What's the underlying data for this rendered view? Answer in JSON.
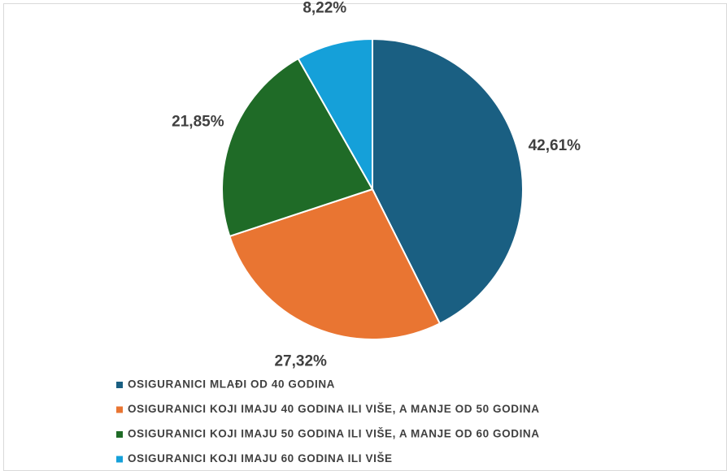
{
  "chart_data": {
    "type": "pie",
    "categories": [
      "OSIGURANICI MLAĐI OD 40 GODINA",
      "OSIGURANICI KOJI IMAJU 40 GODINA ILI VIŠE, A MANJE OD 50 GODINA",
      "OSIGURANICI KOJI IMAJU 50 GODINA ILI VIŠE, A MANJE OD 60 GODINA",
      "OSIGURANICI KOJI IMAJU 60 GODINA ILI VIŠE"
    ],
    "values": [
      42.61,
      27.32,
      21.85,
      8.22
    ],
    "value_labels": [
      "42,61%",
      "27,32%",
      "21,85%",
      "8,22%"
    ],
    "colors": [
      "#1a5f82",
      "#e97532",
      "#1f6b27",
      "#15a0d9"
    ],
    "legend": "bottom"
  }
}
